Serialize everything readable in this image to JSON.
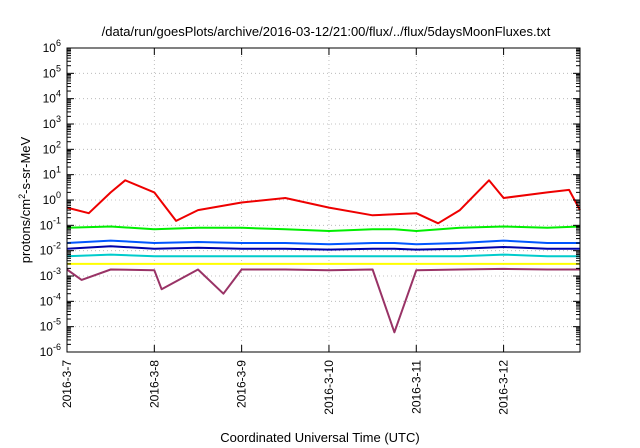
{
  "chart_data": {
    "type": "line",
    "title": "/data/run/goesPlots/archive/2016-03-12/21:00/flux/../flux/5daysMoonFluxes.txt",
    "xlabel": "Coordinated Universal Time (UTC)",
    "ylabel": {
      "base": "protons/cm",
      "sup": "2",
      "rest": "-s-sr-MeV"
    },
    "yscale": "log",
    "ylim": [
      1e-06,
      1000000.0
    ],
    "y_ticks": [
      {
        "value": 1e-06,
        "base": "10",
        "exp": "-6"
      },
      {
        "value": 1e-05,
        "base": "10",
        "exp": "-5"
      },
      {
        "value": 0.0001,
        "base": "10",
        "exp": "-4"
      },
      {
        "value": 0.001,
        "base": "10",
        "exp": "-3"
      },
      {
        "value": 0.01,
        "base": "10",
        "exp": "-2"
      },
      {
        "value": 0.1,
        "base": "10",
        "exp": "-1"
      },
      {
        "value": 1,
        "base": "10",
        "exp": "0"
      },
      {
        "value": 10,
        "base": "10",
        "exp": "1"
      },
      {
        "value": 100,
        "base": "10",
        "exp": "2"
      },
      {
        "value": 1000,
        "base": "10",
        "exp": "3"
      },
      {
        "value": 10000,
        "base": "10",
        "exp": "4"
      },
      {
        "value": 100000,
        "base": "10",
        "exp": "5"
      },
      {
        "value": 1000000,
        "base": "10",
        "exp": "6"
      }
    ],
    "xlim": [
      "2016-03-07 00:00",
      "2016-03-12 21:00"
    ],
    "x_ticks": [
      {
        "label": "2016-3-7",
        "time": "2016-03-07 00:00"
      },
      {
        "label": "2016-3-8",
        "time": "2016-03-08 00:00"
      },
      {
        "label": "2016-3-9",
        "time": "2016-03-09 00:00"
      },
      {
        "label": "2016-3-10",
        "time": "2016-03-10 00:00"
      },
      {
        "label": "2016-3-11",
        "time": "2016-03-11 00:00"
      },
      {
        "label": "2016-3-12",
        "time": "2016-03-12 00:00"
      }
    ],
    "grid": true,
    "series": [
      {
        "color": "#00ee00",
        "x": [
          "2016-03-07 00:00",
          "2016-03-07 12:00",
          "2016-03-08 00:00",
          "2016-03-08 12:00",
          "2016-03-09 00:00",
          "2016-03-09 12:00",
          "2016-03-10 00:00",
          "2016-03-10 12:00",
          "2016-03-10 18:00",
          "2016-03-11 00:00",
          "2016-03-11 12:00",
          "2016-03-12 00:00",
          "2016-03-12 12:00",
          "2016-03-12 21:00"
        ],
        "y": [
          0.08,
          0.09,
          0.07,
          0.08,
          0.08,
          0.07,
          0.06,
          0.07,
          0.07,
          0.06,
          0.08,
          0.09,
          0.08,
          0.09
        ]
      },
      {
        "color": "#00cccc",
        "x": [
          "2016-03-07 00:00",
          "2016-03-07 12:00",
          "2016-03-08 00:00",
          "2016-03-08 12:00",
          "2016-03-09 00:00",
          "2016-03-09 12:00",
          "2016-03-10 00:00",
          "2016-03-10 12:00",
          "2016-03-10 18:00",
          "2016-03-11 00:00",
          "2016-03-11 12:00",
          "2016-03-12 00:00",
          "2016-03-12 12:00",
          "2016-03-12 21:00"
        ],
        "y": [
          0.006,
          0.007,
          0.006,
          0.006,
          0.006,
          0.006,
          0.006,
          0.006,
          0.006,
          0.006,
          0.006,
          0.007,
          0.006,
          0.006
        ]
      },
      {
        "color": "#ffff00",
        "x": [
          "2016-03-07 00:00",
          "2016-03-07 12:00",
          "2016-03-08 00:00",
          "2016-03-08 12:00",
          "2016-03-09 00:00",
          "2016-03-09 12:00",
          "2016-03-10 00:00",
          "2016-03-10 12:00",
          "2016-03-10 18:00",
          "2016-03-11 00:00",
          "2016-03-11 12:00",
          "2016-03-12 00:00",
          "2016-03-12 12:00",
          "2016-03-12 21:00"
        ],
        "y": [
          0.003,
          0.003,
          0.003,
          0.003,
          0.003,
          0.003,
          0.003,
          0.003,
          0.003,
          0.003,
          0.003,
          0.003,
          0.003,
          0.003
        ]
      },
      {
        "color": "#0055ff",
        "x": [
          "2016-03-07 00:00",
          "2016-03-07 12:00",
          "2016-03-08 00:00",
          "2016-03-08 12:00",
          "2016-03-09 00:00",
          "2016-03-09 12:00",
          "2016-03-10 00:00",
          "2016-03-10 12:00",
          "2016-03-10 18:00",
          "2016-03-11 00:00",
          "2016-03-11 12:00",
          "2016-03-12 00:00",
          "2016-03-12 12:00",
          "2016-03-12 21:00"
        ],
        "y": [
          0.02,
          0.025,
          0.02,
          0.022,
          0.02,
          0.02,
          0.018,
          0.02,
          0.02,
          0.018,
          0.02,
          0.025,
          0.02,
          0.02
        ]
      },
      {
        "color": "#0000aa",
        "x": [
          "2016-03-07 00:00",
          "2016-03-07 12:00",
          "2016-03-08 00:00",
          "2016-03-08 12:00",
          "2016-03-09 00:00",
          "2016-03-09 12:00",
          "2016-03-10 00:00",
          "2016-03-10 12:00",
          "2016-03-10 18:00",
          "2016-03-11 00:00",
          "2016-03-11 12:00",
          "2016-03-12 00:00",
          "2016-03-12 12:00",
          "2016-03-12 21:00"
        ],
        "y": [
          0.012,
          0.015,
          0.012,
          0.013,
          0.012,
          0.012,
          0.011,
          0.012,
          0.012,
          0.011,
          0.012,
          0.014,
          0.012,
          0.012
        ]
      },
      {
        "color": "#993366",
        "x": [
          "2016-03-07 00:00",
          "2016-03-07 04:00",
          "2016-03-07 12:00",
          "2016-03-08 00:00",
          "2016-03-08 02:00",
          "2016-03-08 12:00",
          "2016-03-08 19:00",
          "2016-03-09 00:00",
          "2016-03-09 12:00",
          "2016-03-10 00:00",
          "2016-03-10 12:00",
          "2016-03-10 18:00",
          "2016-03-11 00:00",
          "2016-03-11 12:00",
          "2016-03-12 00:00",
          "2016-03-12 12:00",
          "2016-03-12 21:00"
        ],
        "y": [
          0.0018,
          0.0007,
          0.0018,
          0.0017,
          0.0003,
          0.0018,
          0.0002,
          0.0018,
          0.0018,
          0.0017,
          0.0018,
          6e-06,
          0.0017,
          0.0018,
          0.0019,
          0.0018,
          0.0018
        ]
      },
      {
        "color": "#ee0000",
        "x": [
          "2016-03-07 00:00",
          "2016-03-07 06:00",
          "2016-03-07 12:00",
          "2016-03-07 16:00",
          "2016-03-08 00:00",
          "2016-03-08 06:00",
          "2016-03-08 12:00",
          "2016-03-09 00:00",
          "2016-03-09 12:00",
          "2016-03-10 00:00",
          "2016-03-10 12:00",
          "2016-03-11 00:00",
          "2016-03-11 06:00",
          "2016-03-11 12:00",
          "2016-03-11 20:00",
          "2016-03-12 00:00",
          "2016-03-12 12:00",
          "2016-03-12 18:00",
          "2016-03-12 21:00"
        ],
        "y": [
          0.5,
          0.3,
          2,
          6,
          2,
          0.15,
          0.4,
          0.8,
          1.2,
          0.5,
          0.25,
          0.3,
          0.12,
          0.4,
          6,
          1.2,
          2,
          2.5,
          0.4
        ]
      }
    ]
  }
}
